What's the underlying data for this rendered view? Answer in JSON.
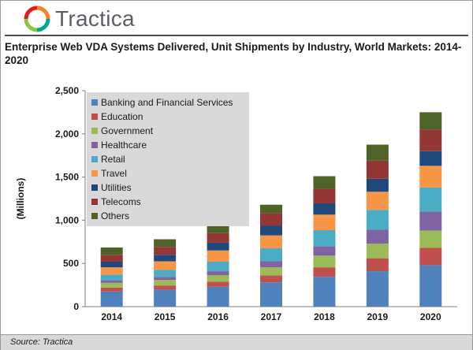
{
  "brand": {
    "name": "Tractica"
  },
  "source": "Source: Tractica",
  "chart_data": {
    "type": "bar",
    "stacked": true,
    "title": "Enterprise Web VDA Systems Delivered, Unit Shipments by Industry, World Markets: 2014-2020",
    "xlabel": "",
    "ylabel": "(Millions)",
    "ylim": [
      0,
      2500
    ],
    "y_ticks": [
      "0",
      "500",
      "1,000",
      "1,500",
      "2,000",
      "2,500"
    ],
    "grid": false,
    "legend_position": "top-left",
    "categories": [
      "2014",
      "2015",
      "2016",
      "2017",
      "2018",
      "2019",
      "2020"
    ],
    "series": [
      {
        "name": "Banking and Financial Services",
        "color": "#4f81bd",
        "values": [
          175,
          195,
          230,
          280,
          345,
          410,
          480
        ]
      },
      {
        "name": "Education",
        "color": "#c0504d",
        "values": [
          45,
          50,
          60,
          80,
          110,
          150,
          200
        ]
      },
      {
        "name": "Government",
        "color": "#9bbb59",
        "values": [
          55,
          65,
          75,
          95,
          135,
          170,
          200
        ]
      },
      {
        "name": "Healthcare",
        "color": "#8064a2",
        "values": [
          30,
          35,
          45,
          70,
          110,
          160,
          220
        ]
      },
      {
        "name": "Retail",
        "color": "#4bacc6",
        "values": [
          65,
          80,
          110,
          150,
          185,
          230,
          280
        ]
      },
      {
        "name": "Travel",
        "color": "#f79646",
        "values": [
          85,
          100,
          130,
          150,
          180,
          210,
          250
        ]
      },
      {
        "name": "Utilities",
        "color": "#1f497d",
        "values": [
          65,
          75,
          90,
          110,
          130,
          150,
          170
        ]
      },
      {
        "name": "Telecoms",
        "color": "#943634",
        "values": [
          80,
          90,
          110,
          145,
          170,
          210,
          250
        ]
      },
      {
        "name": "Others",
        "color": "#4f6228",
        "values": [
          85,
          90,
          110,
          100,
          145,
          185,
          200
        ]
      }
    ]
  }
}
